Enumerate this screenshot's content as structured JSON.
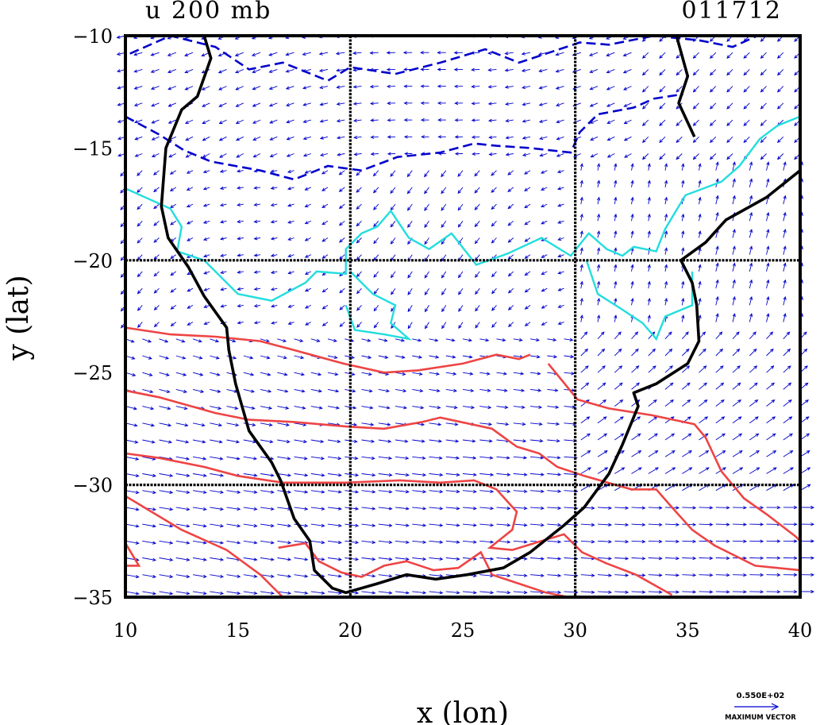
{
  "chart_data": {
    "type": "vector_contour_map",
    "title_left": "u 200 mb",
    "title_right": "011712",
    "xlabel": "x (lon)",
    "ylabel": "y (lat)",
    "xlim": [
      10,
      40
    ],
    "ylim": [
      -35,
      -10
    ],
    "x_ticks": [
      "10",
      "15",
      "20",
      "25",
      "30",
      "35",
      "40"
    ],
    "y_ticks": [
      "-10",
      "-15",
      "-20",
      "-25",
      "-30",
      "-35"
    ],
    "x_tick_values": [
      10,
      15,
      20,
      25,
      30,
      35,
      40
    ],
    "y_tick_values": [
      -10,
      -15,
      -20,
      -25,
      -30,
      -35
    ],
    "grid_lines_x": [
      20,
      30
    ],
    "grid_lines_y": [
      -20,
      -30
    ],
    "max_vector_value": "0.550E+02",
    "max_vector_label": "MAXIMUM VECTOR",
    "colors": {
      "vectors": "#0000cc",
      "negative_contour": "#0000cc",
      "zero_contour": "#22dddd",
      "positive_contour": "#ee4444",
      "coastline": "#000000"
    },
    "coastline": [
      [
        13.5,
        -10
      ],
      [
        13.8,
        -11
      ],
      [
        13.2,
        -12.7
      ],
      [
        12.5,
        -13.3
      ],
      [
        11.8,
        -15
      ],
      [
        11.6,
        -17.6
      ],
      [
        11.9,
        -19
      ],
      [
        12.8,
        -20.3
      ],
      [
        13.5,
        -21.6
      ],
      [
        14.5,
        -23
      ],
      [
        14.6,
        -24
      ],
      [
        14.9,
        -25.5
      ],
      [
        15.5,
        -27.6
      ],
      [
        16.5,
        -29
      ],
      [
        16.9,
        -29.8
      ],
      [
        17.5,
        -31.5
      ],
      [
        18.2,
        -32.5
      ],
      [
        18.4,
        -33.8
      ],
      [
        19.2,
        -34.6
      ],
      [
        19.8,
        -34.8
      ],
      [
        21.2,
        -34.4
      ],
      [
        22.5,
        -34
      ],
      [
        23.8,
        -34.2
      ],
      [
        25.2,
        -34
      ],
      [
        26.8,
        -33.7
      ],
      [
        28,
        -33
      ],
      [
        29.5,
        -31.8
      ],
      [
        30.4,
        -31
      ],
      [
        31.5,
        -29.5
      ],
      [
        32.1,
        -28.2
      ],
      [
        32.8,
        -26.5
      ],
      [
        32.6,
        -25.9
      ],
      [
        33.6,
        -25.5
      ],
      [
        35,
        -24.6
      ],
      [
        35.5,
        -23.6
      ],
      [
        35.4,
        -22
      ],
      [
        35.2,
        -21
      ],
      [
        34.7,
        -20
      ],
      [
        35.8,
        -19.2
      ],
      [
        36.7,
        -18.2
      ],
      [
        38.5,
        -17.2
      ],
      [
        40,
        -16
      ]
    ],
    "coastline_east": [
      [
        34.5,
        -10
      ],
      [
        35,
        -11.8
      ],
      [
        34.6,
        -13
      ],
      [
        35.3,
        -14.5
      ]
    ],
    "zero_contour": [
      [
        10,
        -16.8
      ],
      [
        12,
        -17.7
      ],
      [
        12.5,
        -18.5
      ],
      [
        12.3,
        -19.6
      ],
      [
        13.5,
        -20
      ],
      [
        15,
        -21.5
      ],
      [
        16.5,
        -21.8
      ],
      [
        18,
        -21
      ],
      [
        18.5,
        -20.5
      ],
      [
        19.8,
        -20.6
      ],
      [
        19.8,
        -19.5
      ],
      [
        20.5,
        -18.8
      ],
      [
        21.2,
        -18.5
      ],
      [
        21.8,
        -17.8
      ],
      [
        22.6,
        -19
      ],
      [
        23.5,
        -19.5
      ],
      [
        24.5,
        -18.8
      ],
      [
        25.6,
        -20.2
      ],
      [
        27,
        -19.7
      ],
      [
        28.5,
        -19
      ],
      [
        29.8,
        -19.8
      ],
      [
        30.6,
        -18.8
      ],
      [
        31.4,
        -19.5
      ],
      [
        32.1,
        -19.8
      ],
      [
        32.6,
        -19.4
      ],
      [
        33.6,
        -19.6
      ],
      [
        34,
        -18.6
      ],
      [
        34.9,
        -17.1
      ],
      [
        36.5,
        -16.5
      ],
      [
        37.3,
        -15.8
      ],
      [
        38.2,
        -14.6
      ],
      [
        39,
        -14
      ],
      [
        40,
        -13.6
      ]
    ],
    "zero_contour_south": [
      [
        20,
        -20.5
      ],
      [
        21,
        -21.5
      ],
      [
        22,
        -22
      ],
      [
        21.8,
        -22.8
      ],
      [
        22.6,
        -23.5
      ],
      [
        21.5,
        -23.3
      ],
      [
        20.2,
        -23.1
      ],
      [
        19.8,
        -22
      ]
    ],
    "zero_contour_east": [
      [
        30.5,
        -20
      ],
      [
        31,
        -21.5
      ],
      [
        32.1,
        -22.2
      ],
      [
        33,
        -22.8
      ],
      [
        33.6,
        -23.5
      ],
      [
        34,
        -22.5
      ],
      [
        35.2,
        -22
      ],
      [
        35.2,
        -20.5
      ]
    ],
    "neg_contour_north": [
      [
        10.2,
        -10.8
      ],
      [
        12,
        -10
      ],
      [
        14,
        -10.5
      ],
      [
        15.5,
        -11.5
      ],
      [
        17,
        -11.2
      ],
      [
        19,
        -12
      ],
      [
        20,
        -11.4
      ],
      [
        22,
        -11.7
      ],
      [
        24,
        -11.2
      ],
      [
        26,
        -10.6
      ],
      [
        27.5,
        -11.2
      ],
      [
        29,
        -10.7
      ],
      [
        30.2,
        -10.3
      ],
      [
        31.5,
        -10.4
      ],
      [
        33.5,
        -10
      ],
      [
        35.5,
        -10.2
      ],
      [
        37,
        -10.5
      ],
      [
        38.1,
        -10
      ]
    ],
    "neg_contour_mid": [
      [
        10,
        -13.6
      ],
      [
        11.5,
        -14.4
      ],
      [
        12.6,
        -15.1
      ],
      [
        13.8,
        -15.6
      ],
      [
        16,
        -16
      ],
      [
        17.5,
        -16.4
      ],
      [
        19,
        -15.8
      ],
      [
        20.5,
        -16
      ],
      [
        22.1,
        -15.4
      ],
      [
        24,
        -15.2
      ],
      [
        25.5,
        -14.8
      ],
      [
        26.5,
        -14.9
      ],
      [
        28,
        -15
      ],
      [
        29.8,
        -15.2
      ],
      [
        30.2,
        -14.3
      ],
      [
        31,
        -13.5
      ],
      [
        32.6,
        -13.2
      ],
      [
        33.5,
        -12.8
      ],
      [
        34.8,
        -12.6
      ]
    ],
    "pos_contours": [
      [
        [
          10,
          -23
        ],
        [
          12,
          -23.3
        ],
        [
          14,
          -23.4
        ],
        [
          16,
          -23.6
        ],
        [
          17.5,
          -24
        ],
        [
          19.7,
          -24.6
        ],
        [
          21.5,
          -25
        ],
        [
          23,
          -24.9
        ],
        [
          25,
          -24.6
        ],
        [
          26.5,
          -24.2
        ],
        [
          27.5,
          -24.4
        ],
        [
          28,
          -24.2
        ]
      ],
      [
        [
          28.8,
          -24.6
        ],
        [
          30.1,
          -26.2
        ],
        [
          31.5,
          -26.6
        ],
        [
          33.4,
          -26.9
        ],
        [
          35.3,
          -27.3
        ],
        [
          35.8,
          -27.9
        ],
        [
          36.5,
          -29.4
        ],
        [
          37.5,
          -30.6
        ],
        [
          38.5,
          -31.3
        ],
        [
          39.8,
          -32.3
        ],
        [
          40,
          -32.5
        ]
      ],
      [
        [
          10,
          -25.8
        ],
        [
          11.5,
          -26.1
        ],
        [
          14,
          -26.8
        ],
        [
          15.5,
          -27.1
        ],
        [
          17.5,
          -27.2
        ],
        [
          19.8,
          -27.4
        ],
        [
          21.5,
          -27.5
        ],
        [
          23.2,
          -27.2
        ],
        [
          24,
          -27
        ],
        [
          26.3,
          -27.5
        ],
        [
          27.4,
          -28.3
        ],
        [
          28.4,
          -28.6
        ],
        [
          29.2,
          -29.2
        ],
        [
          30.4,
          -29.6
        ],
        [
          32.5,
          -30.2
        ],
        [
          33.6,
          -30.2
        ],
        [
          34.3,
          -31
        ],
        [
          35.2,
          -32
        ],
        [
          36.2,
          -32.7
        ],
        [
          38,
          -33.6
        ],
        [
          40,
          -33.8
        ]
      ],
      [
        [
          10,
          -28.6
        ],
        [
          11.5,
          -28.8
        ],
        [
          13.5,
          -29.2
        ],
        [
          15,
          -29.6
        ],
        [
          17,
          -29.9
        ],
        [
          19.8,
          -29.9
        ],
        [
          22.2,
          -29.8
        ],
        [
          24,
          -29.9
        ],
        [
          25.5,
          -29.8
        ],
        [
          26.5,
          -30.2
        ],
        [
          27.4,
          -31.2
        ],
        [
          27.2,
          -32
        ],
        [
          26.2,
          -32.8
        ],
        [
          27.2,
          -32.9
        ],
        [
          28.5,
          -32.5
        ],
        [
          29.5,
          -32.2
        ],
        [
          30.3,
          -33
        ],
        [
          31.4,
          -33.5
        ],
        [
          32.7,
          -34
        ],
        [
          34.3,
          -34.9
        ]
      ],
      [
        [
          10,
          -30.5
        ],
        [
          11,
          -31.1
        ],
        [
          12.5,
          -32
        ],
        [
          14.5,
          -32.9
        ],
        [
          16,
          -34
        ],
        [
          17,
          -35
        ]
      ],
      [
        [
          10,
          -32.6
        ],
        [
          10.6,
          -33.6
        ],
        [
          10,
          -33.6
        ]
      ],
      [
        [
          16.8,
          -32.8
        ],
        [
          18,
          -32.6
        ],
        [
          18.6,
          -33.4
        ],
        [
          19.6,
          -33.9
        ],
        [
          20.5,
          -34.1
        ],
        [
          21.5,
          -33.6
        ],
        [
          22.5,
          -33.4
        ],
        [
          23.7,
          -33.8
        ],
        [
          24.8,
          -33.7
        ],
        [
          25.8,
          -33
        ],
        [
          26.3,
          -34
        ],
        [
          27.5,
          -34.4
        ],
        [
          28.7,
          -34.8
        ],
        [
          29.7,
          -35
        ]
      ]
    ]
  }
}
